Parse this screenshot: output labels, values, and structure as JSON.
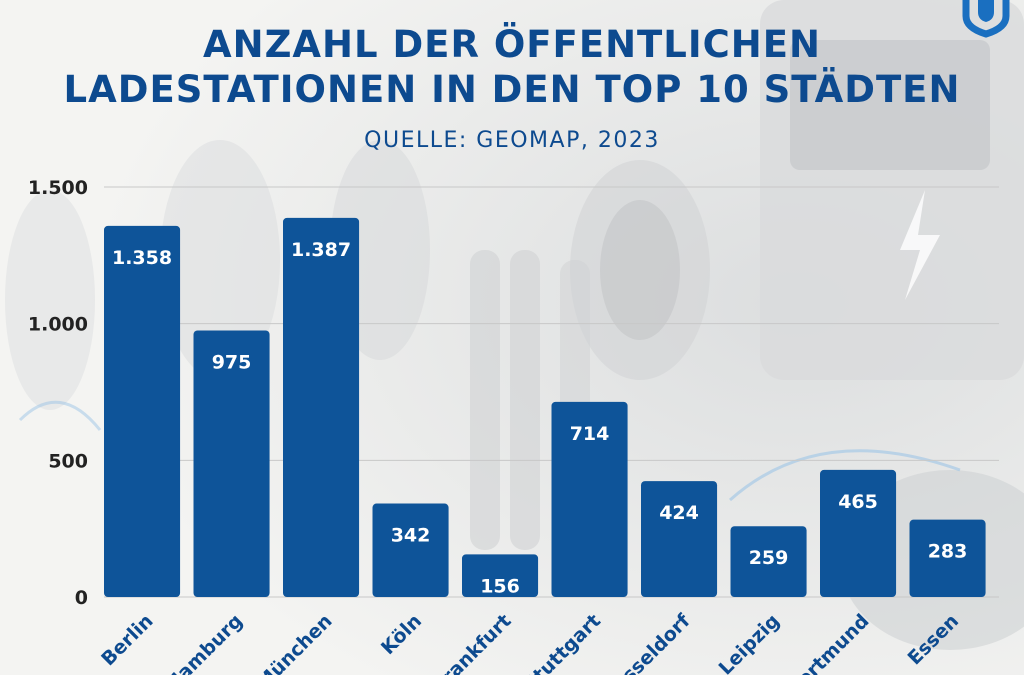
{
  "header": {
    "title_line1": "ANZAHL DER ÖFFENTLICHEN",
    "title_line2": "LADESTATIONEN IN DEN TOP 10 STÄDTEN",
    "source": "QUELLE: GEOMAP,  2023"
  },
  "colors": {
    "bar": "#0e5499",
    "title": "#0d4a8f",
    "grid": "#c8c8c8"
  },
  "chart_data": {
    "type": "bar",
    "categories": [
      "Berlin",
      "Hamburg",
      "München",
      "Köln",
      "Frankfurt",
      "Stuttgart",
      "Düsseldorf",
      "Leipzig",
      "Dortmund",
      "Essen"
    ],
    "values": [
      1358,
      975,
      1387,
      342,
      156,
      714,
      424,
      259,
      465,
      283
    ],
    "value_labels": [
      "1.358",
      "975",
      "1.387",
      "342",
      "156",
      "714",
      "424",
      "259",
      "465",
      "283"
    ],
    "y_ticks": [
      0,
      500,
      1000,
      1500
    ],
    "y_tick_labels": [
      "0",
      "500",
      "1.000",
      "1.500"
    ],
    "ylim": [
      0,
      1500
    ],
    "grid": true,
    "title": "ANZAHL DER ÖFFENTLICHEN LADESTATIONEN IN DEN TOP 10 STÄDTEN",
    "subtitle": "QUELLE: GEOMAP,  2023"
  }
}
